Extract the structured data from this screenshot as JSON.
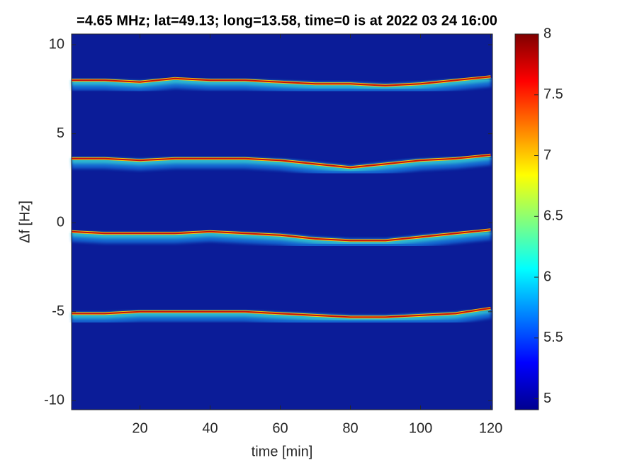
{
  "chart_data": {
    "type": "spectrogram",
    "title": "=4.65 MHz;  lat=49.13; long=13.58, time=0 is at 2022 03 24 16:00",
    "x_label": "time [min]",
    "y_label": "Δf [Hz]",
    "xlim": [
      0.5,
      120.5
    ],
    "xticks": [
      20,
      40,
      60,
      80,
      100,
      120
    ],
    "ylim": [
      -10.5,
      10.6
    ],
    "yticks": [
      -10,
      -5,
      0,
      5,
      10
    ],
    "clim": [
      4.91,
      8
    ],
    "cticks": [
      5,
      5.5,
      6,
      6.5,
      7,
      7.5,
      8
    ],
    "background": "#0b1c98",
    "x": [
      0,
      10,
      20,
      30,
      40,
      50,
      60,
      70,
      80,
      90,
      100,
      110,
      120
    ],
    "series": [
      {
        "color": "#c8100a",
        "values": [
          8.0,
          8.0,
          7.9,
          8.1,
          8.0,
          8.0,
          7.9,
          7.8,
          7.8,
          7.7,
          7.8,
          8.0,
          8.2
        ]
      },
      {
        "color": "#c8100a",
        "values": [
          3.6,
          3.6,
          3.5,
          3.6,
          3.6,
          3.6,
          3.5,
          3.3,
          3.1,
          3.3,
          3.5,
          3.6,
          3.8
        ]
      },
      {
        "color": "#c8100a",
        "values": [
          -0.5,
          -0.6,
          -0.6,
          -0.6,
          -0.5,
          -0.6,
          -0.7,
          -0.9,
          -1.0,
          -1.0,
          -0.8,
          -0.6,
          -0.4
        ]
      },
      {
        "color": "#c8100a",
        "values": [
          -5.1,
          -5.1,
          -5.0,
          -5.0,
          -5.0,
          -5.0,
          -5.1,
          -5.2,
          -5.3,
          -5.3,
          -5.2,
          -5.1,
          -4.8
        ]
      }
    ]
  }
}
